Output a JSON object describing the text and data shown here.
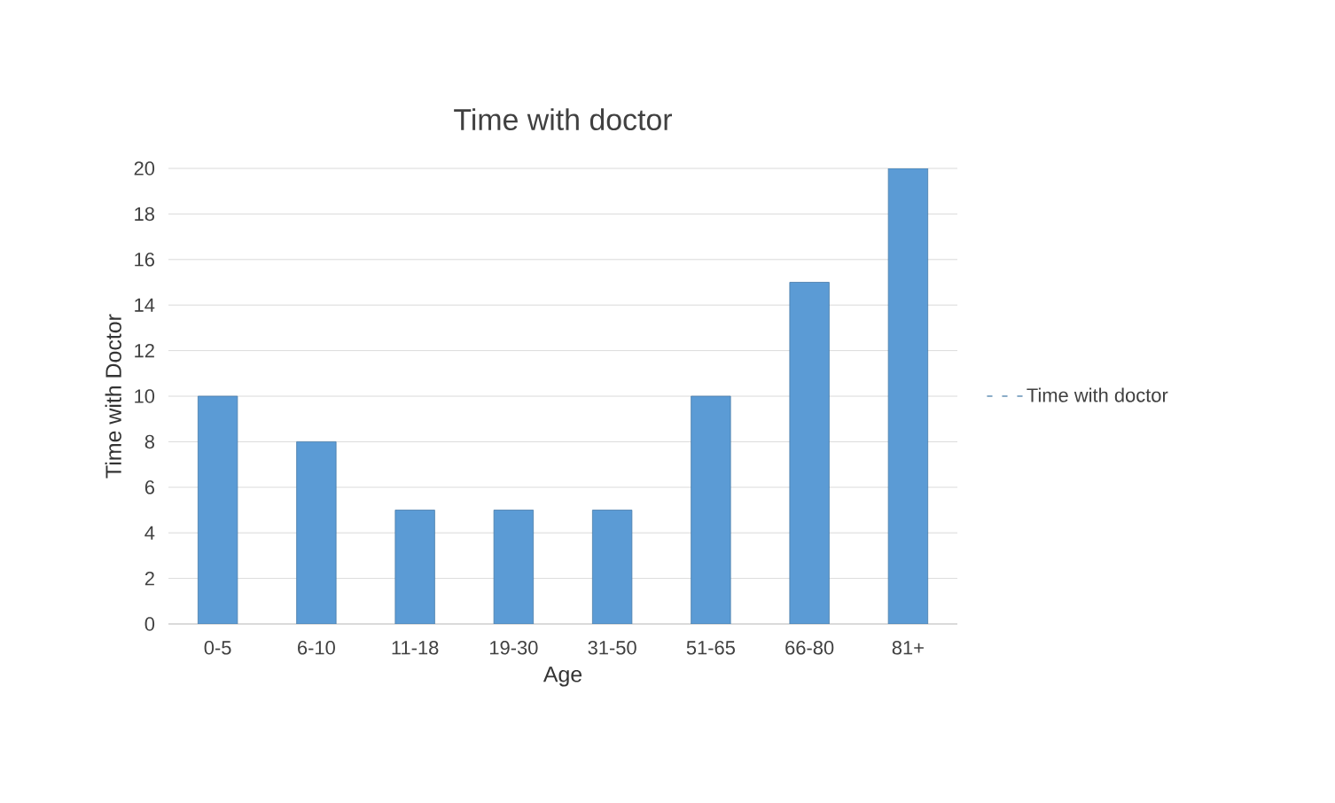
{
  "chart_data": {
    "type": "bar",
    "title": "Time with doctor",
    "xlabel": "Age",
    "ylabel": "Time with Doctor",
    "categories": [
      "0-5",
      "6-10",
      "11-18",
      "19-30",
      "31-50",
      "51-65",
      "66-80",
      "81+"
    ],
    "series": [
      {
        "name": "Time with doctor",
        "color": "#5b9bd5",
        "values": [
          10,
          8,
          5,
          5,
          5,
          10,
          15,
          20
        ]
      }
    ],
    "ylim": [
      0,
      20
    ],
    "yticks": [
      0,
      2,
      4,
      6,
      8,
      10,
      12,
      14,
      16,
      18,
      20
    ],
    "grid": "y",
    "legend": "right"
  }
}
